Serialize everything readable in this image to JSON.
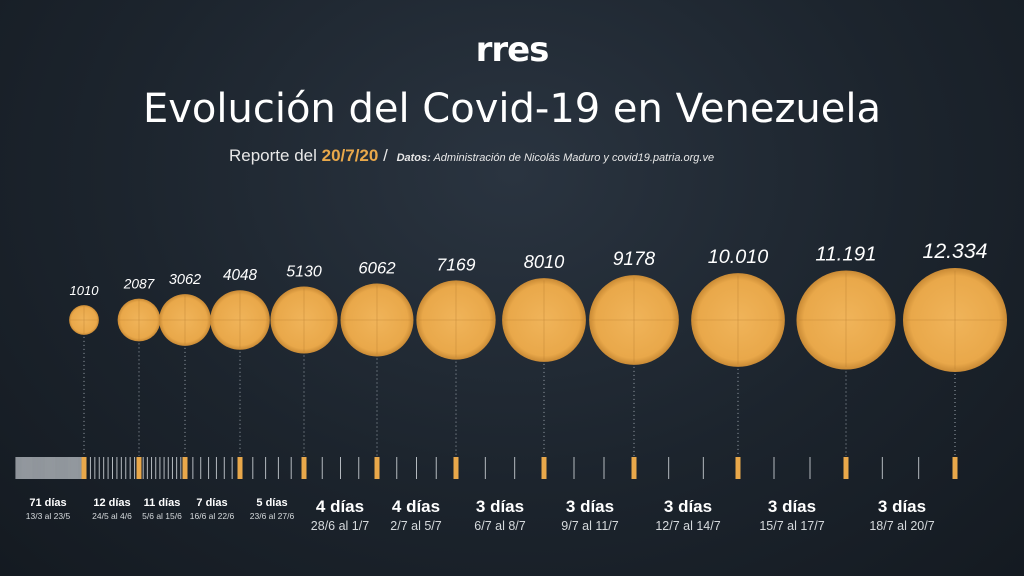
{
  "logo": "rres",
  "title": "Evolución del Covid-19 en Venezuela",
  "subtitle": {
    "prefix": "Reporte del",
    "date": "20/7/20",
    "separator": "/",
    "source_label": "Datos:",
    "source_text": "Administración de Nicolás Maduro y covid19.patria.org.ve"
  },
  "colors": {
    "accent": "#e9a84a",
    "text": "#ffffff",
    "tick": "#cfd4d9"
  },
  "chart_data": {
    "type": "bubble",
    "values": [
      1010,
      2087,
      3062,
      4048,
      5130,
      6062,
      7169,
      8010,
      9178,
      10010,
      11191,
      12334
    ],
    "value_labels": [
      "1010",
      "2087",
      "3062",
      "4048",
      "5130",
      "6062",
      "7169",
      "8010",
      "9178",
      "10.010",
      "11.191",
      "12.334"
    ],
    "intervals": [
      {
        "days": "71 días",
        "range": "13/3 al 23/5"
      },
      {
        "days": "12 días",
        "range": "24/5 al 4/6"
      },
      {
        "days": "11 días",
        "range": "5/6 al 15/6"
      },
      {
        "days": "7 días",
        "range": "16/6 al 22/6"
      },
      {
        "days": "5 días",
        "range": "23/6 al 27/6"
      },
      {
        "days": "4 días",
        "range": "28/6 al 1/7"
      },
      {
        "days": "4 días",
        "range": "2/7 al 5/7"
      },
      {
        "days": "3 días",
        "range": "6/7 al 8/7"
      },
      {
        "days": "3 días",
        "range": "9/7 al 11/7"
      },
      {
        "days": "3 días",
        "range": "12/7 al 14/7"
      },
      {
        "days": "3 días",
        "range": "15/7 al 17/7"
      },
      {
        "days": "3 días",
        "range": "18/7 al 20/7"
      }
    ],
    "interval_days": [
      71,
      12,
      11,
      7,
      5,
      4,
      4,
      3,
      3,
      3,
      3,
      3
    ]
  }
}
